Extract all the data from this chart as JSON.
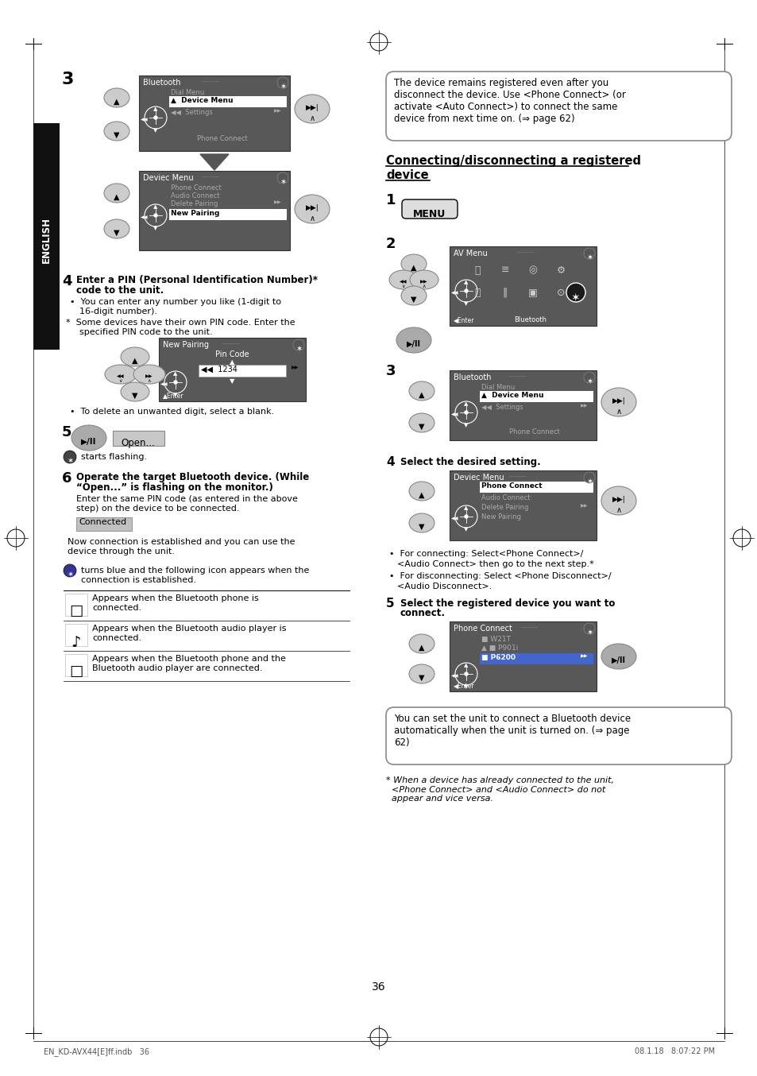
{
  "page_bg": "#ffffff",
  "page_num": "36",
  "footer_left": "EN_KD-AVX44[E]ff.indb   36",
  "footer_right": "08.1.18   8:07:22 PM",
  "sidebar_text": "ENGLISH",
  "sidebar_bg": "#1a1a1a",
  "note_box1_text": "The device remains registered even after you\ndisconnect the device. Use <Phone Connect> (or\nactivate <Auto Connect>) to connect the same\ndevice from next time on. (⇒ page 62)",
  "section_title_line1": "Connecting/disconnecting a registered",
  "section_title_line2": "device",
  "note_box2_text": "You can set the unit to connect a Bluetooth device\nautomatically when the unit is turned on. (⇒ page\n62)",
  "footnote_text": "* When a device has already connected to the unit,\n  <Phone Connect> and <Audio Connect> do not\n  appear and vice versa.",
  "screen_bg": "#585858",
  "screen_highlight": "#ffffff",
  "screen_text_dim": "#aaaaaa",
  "ellipse_nav": "#cccccc",
  "ellipse_nav_dark": "#999999"
}
